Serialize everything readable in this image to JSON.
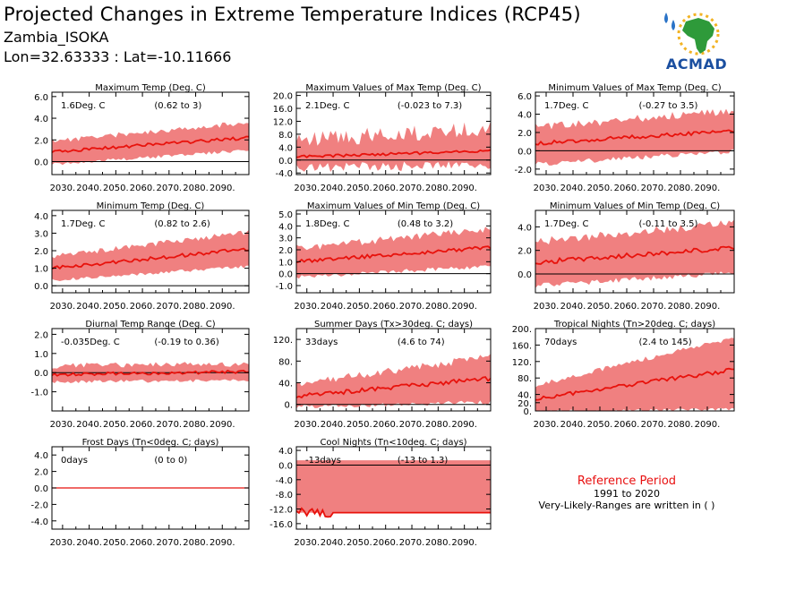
{
  "header": {
    "title": "Projected Changes in Extreme Temperature Indices (RCP45)",
    "location": "Zambia_ISOKA",
    "coords": "Lon=32.63333 : Lat=-10.11666",
    "logo_text": "ACMAD"
  },
  "reference": {
    "title": "Reference Period",
    "years": "1991 to 2020",
    "note": "Very-Likely-Ranges are written in ( )"
  },
  "chart_data": [
    {
      "type": "area",
      "title": "Maximum Temp (Deg. C)",
      "value_label": "1.6Deg. C",
      "range_label": "(0.62 to 3)",
      "x": [
        2026,
        2100
      ],
      "xticks": [
        "2030.",
        "2040.",
        "2050.",
        "2060.",
        "2070.",
        "2080.",
        "2090."
      ],
      "yticks": [
        "0.0",
        "2.0",
        "4.0",
        "6.0"
      ],
      "ylim": [
        -1.2,
        6.4
      ],
      "median": {
        "start": 0.9,
        "end": 2.2,
        "noise": 0.15
      },
      "band": {
        "lo_start": -0.1,
        "lo_end": 1.2,
        "hi_start": 1.8,
        "hi_end": 3.5,
        "noise": 0.5
      }
    },
    {
      "type": "area",
      "title": "Maximum Values of Max Temp (Deg. C)",
      "value_label": "2.1Deg. C",
      "range_label": "(-0.023 to 7.3)",
      "x": [
        2026,
        2100
      ],
      "xticks": [
        "2030.",
        "2040.",
        "2050.",
        "2060.",
        "2070.",
        "2080.",
        "2090."
      ],
      "yticks": [
        "-4.0",
        "0.0",
        "4.0",
        "8.0",
        "12.0",
        "16.0",
        "20.0"
      ],
      "ylim": [
        -4.5,
        21
      ],
      "median": {
        "start": 1.0,
        "end": 2.8,
        "noise": 0.4
      },
      "band": {
        "lo_start": -1.0,
        "lo_end": 0.0,
        "hi_start": 5,
        "hi_end": 9,
        "noise": 5
      }
    },
    {
      "type": "area",
      "title": "Minimum Values of Max Temp (Deg. C)",
      "value_label": "1.7Deg. C",
      "range_label": "(-0.27 to 3.5)",
      "x": [
        2026,
        2100
      ],
      "xticks": [
        "2030.",
        "2040.",
        "2050.",
        "2060.",
        "2070.",
        "2080.",
        "2090."
      ],
      "yticks": [
        "-2.0",
        "0.0",
        "2.0",
        "4.0",
        "6.0"
      ],
      "ylim": [
        -2.6,
        6.4
      ],
      "median": {
        "start": 0.8,
        "end": 2.2,
        "noise": 0.2
      },
      "band": {
        "lo_start": -1.2,
        "lo_end": 0.2,
        "hi_start": 2.4,
        "hi_end": 4.2,
        "noise": 0.9
      }
    },
    {
      "type": "area",
      "title": "Minimum Temp (Deg. C)",
      "value_label": "1.7Deg. C",
      "range_label": "(0.82 to 2.6)",
      "x": [
        2026,
        2100
      ],
      "xticks": [
        "2030.",
        "2040.",
        "2050.",
        "2060.",
        "2070.",
        "2080.",
        "2090."
      ],
      "yticks": [
        "0.0",
        "1.0",
        "2.0",
        "3.0",
        "4.0"
      ],
      "ylim": [
        -0.4,
        4.3
      ],
      "median": {
        "start": 1.0,
        "end": 2.1,
        "noise": 0.1
      },
      "band": {
        "lo_start": 0.4,
        "lo_end": 1.2,
        "hi_start": 1.6,
        "hi_end": 3.0,
        "noise": 0.3
      }
    },
    {
      "type": "area",
      "title": "Maximum Values of Min Temp (Deg. C)",
      "value_label": "1.8Deg. C",
      "range_label": "(0.48 to 3.2)",
      "x": [
        2026,
        2100
      ],
      "xticks": [
        "2030.",
        "2040.",
        "2050.",
        "2060.",
        "2070.",
        "2080.",
        "2090."
      ],
      "yticks": [
        "-1.0",
        "0.0",
        "1.0",
        "2.0",
        "3.0",
        "4.0",
        "5.0"
      ],
      "ylim": [
        -1.6,
        5.3
      ],
      "median": {
        "start": 1.0,
        "end": 2.2,
        "noise": 0.15
      },
      "band": {
        "lo_start": -0.1,
        "lo_end": 0.8,
        "hi_start": 2.0,
        "hi_end": 3.6,
        "noise": 0.6
      }
    },
    {
      "type": "area",
      "title": "Minimum Values of Min Temp (Deg. C)",
      "value_label": "1.7Deg. C",
      "range_label": "(-0.11 to 3.5)",
      "x": [
        2026,
        2100
      ],
      "xticks": [
        "2030.",
        "2040.",
        "2050.",
        "2060.",
        "2070.",
        "2080.",
        "2090."
      ],
      "yticks": [
        "0.0",
        "2.0",
        "4.0"
      ],
      "ylim": [
        -1.6,
        5.4
      ],
      "median": {
        "start": 1.0,
        "end": 2.2,
        "noise": 0.2
      },
      "band": {
        "lo_start": -0.8,
        "lo_end": 0.3,
        "hi_start": 2.6,
        "hi_end": 4.2,
        "noise": 0.7
      }
    },
    {
      "type": "area",
      "title": "Diurnal Temp Range (Deg. C)",
      "value_label": "-0.035Deg. C",
      "range_label": "(-0.19 to 0.36)",
      "x": [
        2026,
        2100
      ],
      "xticks": [
        "2030.",
        "2040.",
        "2050.",
        "2060.",
        "2070.",
        "2080.",
        "2090."
      ],
      "yticks": [
        "-1.0",
        "0.0",
        "1.0",
        "2.0"
      ],
      "ylim": [
        -2.0,
        2.3
      ],
      "median": {
        "start": -0.1,
        "end": 0.05,
        "noise": 0.08
      },
      "band": {
        "lo_start": -0.4,
        "lo_end": -0.3,
        "hi_start": 0.3,
        "hi_end": 0.4,
        "noise": 0.3
      }
    },
    {
      "type": "area",
      "title": "Summer Days (Tx>30deg. C; days)",
      "value_label": "33days",
      "range_label": "(4.6 to 74)",
      "x": [
        2026,
        2100
      ],
      "xticks": [
        "2030.",
        "2040.",
        "2050.",
        "2060.",
        "2070.",
        "2080.",
        "2090."
      ],
      "yticks": [
        "0.",
        "40.",
        "80.",
        "120."
      ],
      "ylim": [
        -12,
        140
      ],
      "median": {
        "start": 15,
        "end": 48,
        "noise": 4
      },
      "band": {
        "lo_start": 0,
        "lo_end": 8,
        "hi_start": 35,
        "hi_end": 85,
        "noise": 14
      }
    },
    {
      "type": "area",
      "title": "Tropical Nights (Tn>20deg. C; days)",
      "value_label": "70days",
      "range_label": "(2.4 to 145)",
      "x": [
        2026,
        2100
      ],
      "xticks": [
        "2030.",
        "2040.",
        "2050.",
        "2060.",
        "2070.",
        "2080.",
        "2090."
      ],
      "yticks": [
        "0.",
        "20.",
        "40.",
        "80.",
        "120.",
        "160.",
        "200."
      ],
      "ylim": [
        0,
        200
      ],
      "median": {
        "start": 30,
        "end": 100,
        "noise": 5
      },
      "band": {
        "lo_start": 2,
        "lo_end": 8,
        "hi_start": 60,
        "hi_end": 175,
        "noise": 12
      }
    },
    {
      "type": "line",
      "title": "Frost Days (Tn<0deg. C; days)",
      "value_label": "0days",
      "range_label": "(0 to 0)",
      "x": [
        2026,
        2100
      ],
      "xticks": [
        "2030.",
        "2040.",
        "2050.",
        "2060.",
        "2070.",
        "2080.",
        "2090."
      ],
      "yticks": [
        "-4.0",
        "-2.0",
        "0.0",
        "2.0",
        "4.0"
      ],
      "ylim": [
        -5,
        5
      ],
      "median": {
        "start": 0,
        "end": 0,
        "noise": 0
      },
      "band": {
        "lo_start": 0,
        "lo_end": 0,
        "hi_start": 0,
        "hi_end": 0,
        "noise": 0
      }
    },
    {
      "type": "area",
      "title": "Cool Nights (Tn<10deg. C; days)",
      "value_label": "-13days",
      "range_label": "(-13 to 1.3)",
      "x": [
        2026,
        2100
      ],
      "xticks": [
        "2030.",
        "2040.",
        "2050.",
        "2060.",
        "2070.",
        "2080.",
        "2090."
      ],
      "yticks": [
        "-16.0",
        "-12.0",
        "-8.0",
        "-4.0",
        "0.0",
        "4.0"
      ],
      "ylim": [
        -17.5,
        5
      ],
      "median": {
        "start": -13,
        "end": -13,
        "noise": 0,
        "early_wiggle": true
      },
      "band": {
        "lo_start": -13,
        "lo_end": -13,
        "hi_start": 1.3,
        "hi_end": 1.3,
        "noise": 0
      }
    }
  ]
}
